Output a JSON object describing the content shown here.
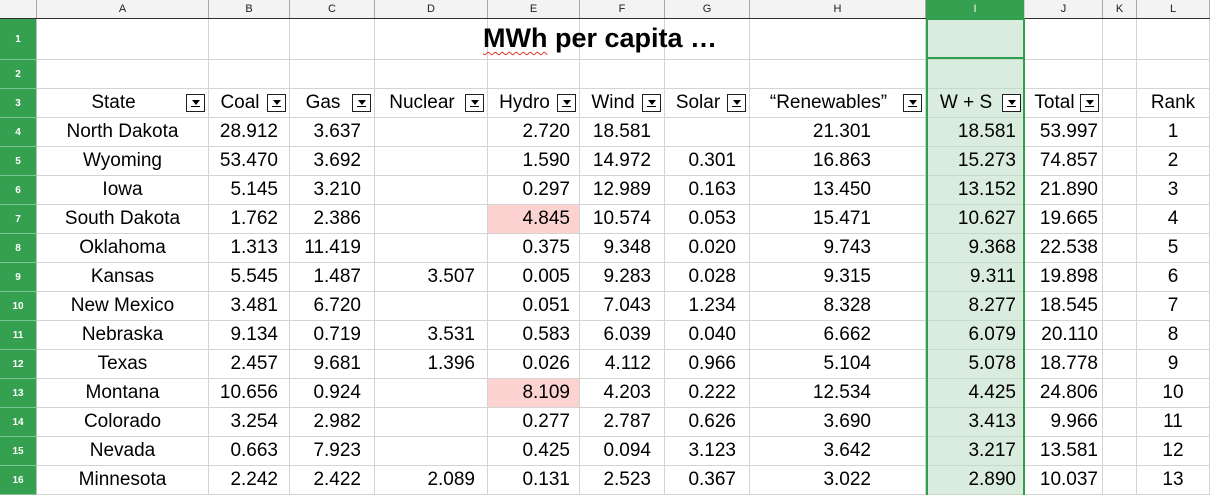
{
  "sheet": {
    "title": {
      "word": "MWh",
      "rest": " per capita …"
    },
    "column_letters": [
      "A",
      "B",
      "C",
      "D",
      "E",
      "F",
      "G",
      "H",
      "I",
      "J",
      "K",
      "L"
    ],
    "selected_column": "I",
    "row_numbers": [
      "1",
      "2",
      "3",
      "4",
      "5",
      "6",
      "7",
      "8",
      "9",
      "10",
      "11",
      "12",
      "13",
      "14",
      "15",
      "16"
    ],
    "headers": {
      "state": "State",
      "coal": "Coal",
      "gas": "Gas",
      "nuclear": "Nuclear",
      "hydro": "Hydro",
      "wind": "Wind",
      "solar": "Solar",
      "renewables": "“Renewables”",
      "ws": "W + S",
      "total": "Total",
      "rank": "Rank"
    },
    "colors": {
      "accent_green": "#35a150",
      "selection_fill": "#d9ecdd",
      "selection_border": "#2f9e4e",
      "highlight_pink": "#fcd3d0",
      "gridline": "#d4d4d4"
    },
    "rows": [
      {
        "state": "North Dakota",
        "coal": "28.912",
        "gas": "3.637",
        "nuclear": "",
        "hydro": "2.720",
        "wind": "18.581",
        "solar": "",
        "renewables": "21.301",
        "ws": "18.581",
        "total": "53.997",
        "rank": "1"
      },
      {
        "state": "Wyoming",
        "coal": "53.470",
        "gas": "3.692",
        "nuclear": "",
        "hydro": "1.590",
        "wind": "14.972",
        "solar": "0.301",
        "renewables": "16.863",
        "ws": "15.273",
        "total": "74.857",
        "rank": "2"
      },
      {
        "state": "Iowa",
        "coal": "5.145",
        "gas": "3.210",
        "nuclear": "",
        "hydro": "0.297",
        "wind": "12.989",
        "solar": "0.163",
        "renewables": "13.450",
        "ws": "13.152",
        "total": "21.890",
        "rank": "3"
      },
      {
        "state": "South Dakota",
        "coal": "1.762",
        "gas": "2.386",
        "nuclear": "",
        "hydro": "4.845",
        "wind": "10.574",
        "solar": "0.053",
        "renewables": "15.471",
        "ws": "10.627",
        "total": "19.665",
        "rank": "4"
      },
      {
        "state": "Oklahoma",
        "coal": "1.313",
        "gas": "11.419",
        "nuclear": "",
        "hydro": "0.375",
        "wind": "9.348",
        "solar": "0.020",
        "renewables": "9.743",
        "ws": "9.368",
        "total": "22.538",
        "rank": "5"
      },
      {
        "state": "Kansas",
        "coal": "5.545",
        "gas": "1.487",
        "nuclear": "3.507",
        "hydro": "0.005",
        "wind": "9.283",
        "solar": "0.028",
        "renewables": "9.315",
        "ws": "9.311",
        "total": "19.898",
        "rank": "6"
      },
      {
        "state": "New Mexico",
        "coal": "3.481",
        "gas": "6.720",
        "nuclear": "",
        "hydro": "0.051",
        "wind": "7.043",
        "solar": "1.234",
        "renewables": "8.328",
        "ws": "8.277",
        "total": "18.545",
        "rank": "7"
      },
      {
        "state": "Nebraska",
        "coal": "9.134",
        "gas": "0.719",
        "nuclear": "3.531",
        "hydro": "0.583",
        "wind": "6.039",
        "solar": "0.040",
        "renewables": "6.662",
        "ws": "6.079",
        "total": "20.110",
        "rank": "8"
      },
      {
        "state": "Texas",
        "coal": "2.457",
        "gas": "9.681",
        "nuclear": "1.396",
        "hydro": "0.026",
        "wind": "4.112",
        "solar": "0.966",
        "renewables": "5.104",
        "ws": "5.078",
        "total": "18.778",
        "rank": "9"
      },
      {
        "state": "Montana",
        "coal": "10.656",
        "gas": "0.924",
        "nuclear": "",
        "hydro": "8.109",
        "wind": "4.203",
        "solar": "0.222",
        "renewables": "12.534",
        "ws": "4.425",
        "total": "24.806",
        "rank": "10"
      },
      {
        "state": "Colorado",
        "coal": "3.254",
        "gas": "2.982",
        "nuclear": "",
        "hydro": "0.277",
        "wind": "2.787",
        "solar": "0.626",
        "renewables": "3.690",
        "ws": "3.413",
        "total": "9.966",
        "rank": "11"
      },
      {
        "state": "Nevada",
        "coal": "0.663",
        "gas": "7.923",
        "nuclear": "",
        "hydro": "0.425",
        "wind": "0.094",
        "solar": "3.123",
        "renewables": "3.642",
        "ws": "3.217",
        "total": "13.581",
        "rank": "12"
      },
      {
        "state": "Minnesota",
        "coal": "2.242",
        "gas": "2.422",
        "nuclear": "2.089",
        "hydro": "0.131",
        "wind": "2.523",
        "solar": "0.367",
        "renewables": "3.022",
        "ws": "2.890",
        "total": "10.037",
        "rank": "13"
      }
    ]
  }
}
